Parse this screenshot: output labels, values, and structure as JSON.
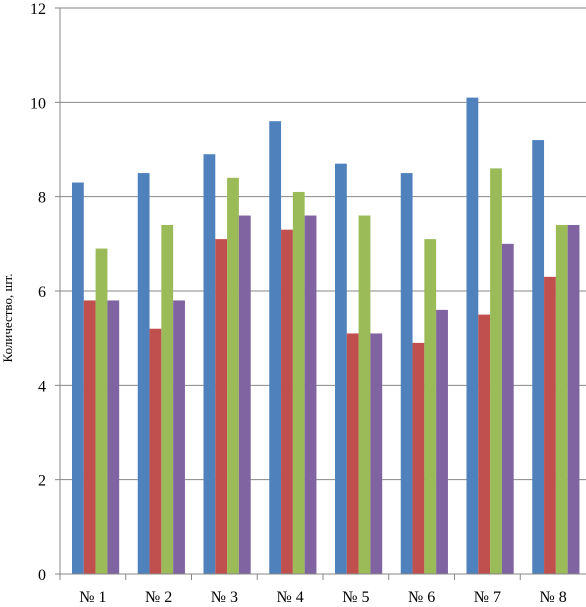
{
  "chart_data": {
    "type": "bar",
    "title": "",
    "xlabel": "",
    "ylabel": "Количество, шт.",
    "ylim": [
      0,
      12
    ],
    "yticks": [
      0,
      2,
      4,
      6,
      8,
      10,
      12
    ],
    "grid": "horizontal",
    "legend": "none",
    "categories": [
      "№ 1",
      "№ 2",
      "№ 3",
      "№ 4",
      "№ 5",
      "№ 6",
      "№ 7",
      "№ 8"
    ],
    "series": [
      {
        "color": "#4F81BD",
        "values": [
          8.3,
          8.5,
          8.9,
          9.6,
          8.7,
          8.5,
          10.1,
          9.2
        ]
      },
      {
        "color": "#C0504D",
        "values": [
          5.8,
          5.2,
          7.1,
          7.3,
          5.1,
          4.9,
          5.5,
          6.3
        ]
      },
      {
        "color": "#9BBB59",
        "values": [
          6.9,
          7.4,
          8.4,
          8.1,
          7.6,
          7.1,
          8.6,
          7.4
        ]
      },
      {
        "color": "#8064A2",
        "values": [
          5.8,
          5.8,
          7.6,
          7.6,
          5.1,
          5.6,
          7.0,
          7.4
        ]
      }
    ]
  }
}
